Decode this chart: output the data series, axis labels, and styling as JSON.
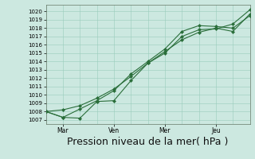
{
  "bg_color": "#cce8e0",
  "grid_color": "#99ccbb",
  "line_color": "#2a6e3a",
  "marker_color": "#2a6e3a",
  "xlabel": "Pression niveau de la mer( hPa )",
  "xlabel_fontsize": 9,
  "ytick_labels": [
    1007,
    1008,
    1009,
    1010,
    1011,
    1012,
    1013,
    1014,
    1015,
    1016,
    1017,
    1018,
    1019,
    1020
  ],
  "ylim": [
    1006.5,
    1020.8
  ],
  "xtick_labels": [
    "Mar",
    "Ven",
    "Mer",
    "Jeu"
  ],
  "xtick_positions": [
    1,
    4,
    7,
    10
  ],
  "xlim": [
    0,
    12
  ],
  "line1_x": [
    0,
    1,
    2,
    3,
    4,
    5,
    6,
    7,
    8,
    9,
    10,
    11,
    12
  ],
  "line1_y": [
    1008.0,
    1007.3,
    1007.2,
    1009.2,
    1009.3,
    1011.7,
    1013.8,
    1015.2,
    1016.6,
    1017.5,
    1018.0,
    1017.6,
    1019.7
  ],
  "line2_x": [
    0,
    1,
    2,
    3,
    4,
    5,
    6,
    7,
    8,
    9,
    10,
    11,
    12
  ],
  "line2_y": [
    1008.0,
    1007.3,
    1008.3,
    1009.3,
    1010.5,
    1012.5,
    1014.0,
    1015.5,
    1017.6,
    1018.3,
    1018.2,
    1018.0,
    1019.5
  ],
  "line3_x": [
    0,
    1,
    2,
    3,
    4,
    5,
    6,
    7,
    8,
    9,
    10,
    11,
    12
  ],
  "line3_y": [
    1008.0,
    1008.2,
    1008.7,
    1009.6,
    1010.7,
    1012.2,
    1013.8,
    1015.0,
    1017.0,
    1017.8,
    1017.9,
    1018.5,
    1020.2
  ]
}
